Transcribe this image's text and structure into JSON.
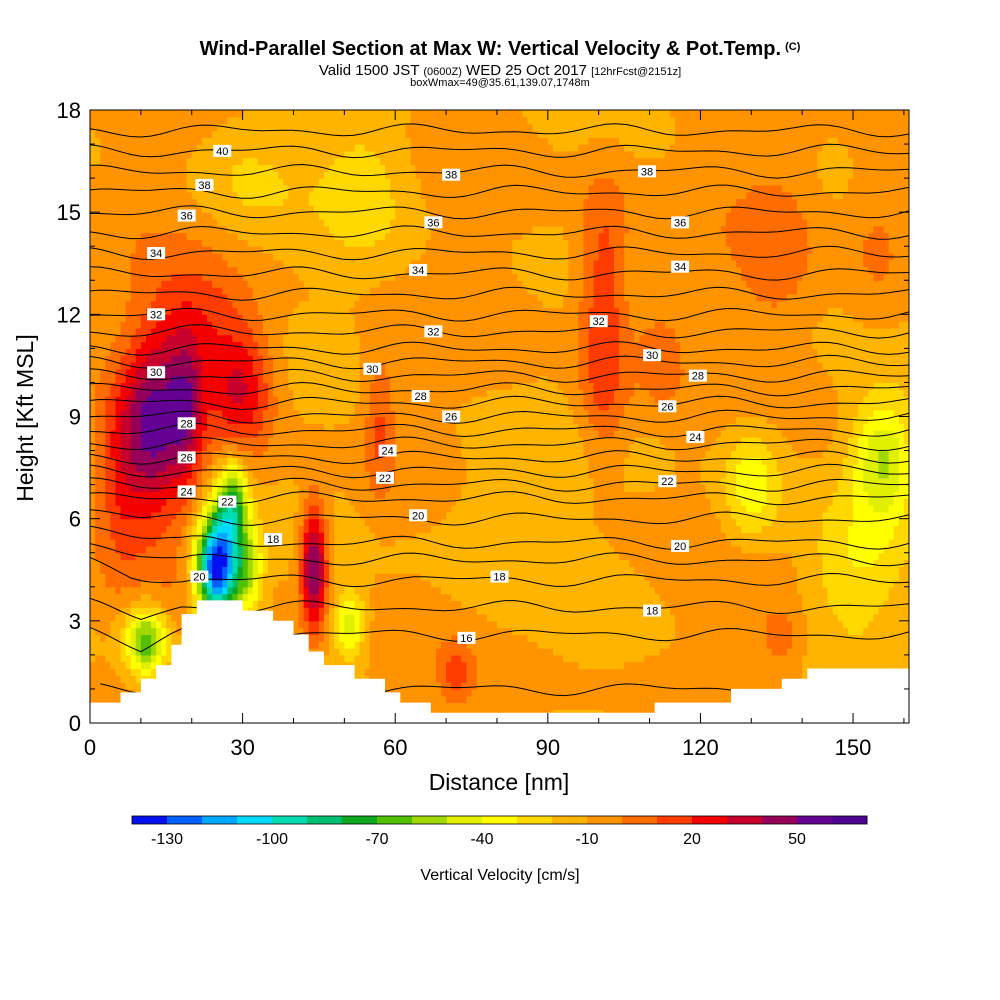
{
  "header": {
    "title": "Wind-Parallel Section at Max W: Vertical Velocity & Pot.Temp.",
    "copyright": "(C)",
    "valid_prefix": "Valid 1500 JST",
    "valid_utc": "(0600Z)",
    "valid_date": "WED 25 Oct 2017",
    "forecast": "[12hrFcst@2151z]",
    "box_info": "boxWmax=49@35.61,139.07,1748m"
  },
  "chart_data": {
    "type": "heatmap",
    "xlabel": "Distance [nm]",
    "ylabel": "Height [Kft MSL]",
    "xlim": [
      0,
      161
    ],
    "ylim": [
      0,
      18
    ],
    "xticks": [
      0,
      30,
      60,
      90,
      120,
      150
    ],
    "yticks": [
      0,
      3,
      6,
      9,
      12,
      15,
      18
    ],
    "colorbar": {
      "label": "Vertical Velocity [cm/s]",
      "tick_labels": [
        "-130",
        "-100",
        "-70",
        "-40",
        "-10",
        "20",
        "50"
      ],
      "tick_values": [
        -130,
        -100,
        -70,
        -40,
        -10,
        20,
        50
      ],
      "min": -140,
      "max": 70,
      "step": 10,
      "colors": [
        "#0010f0",
        "#0060ff",
        "#00a8ff",
        "#00dcff",
        "#00dcb0",
        "#00c070",
        "#10a820",
        "#50c000",
        "#a0d800",
        "#e0f000",
        "#ffff00",
        "#ffd800",
        "#ffb400",
        "#ff9400",
        "#ff6c00",
        "#ff3c00",
        "#f40000",
        "#c8002c",
        "#960058",
        "#640094",
        "#500090"
      ]
    },
    "terrain": [
      [
        0,
        0.6
      ],
      [
        6,
        0.6
      ],
      [
        6,
        0.9
      ],
      [
        10,
        0.9
      ],
      [
        10,
        1.3
      ],
      [
        13,
        1.3
      ],
      [
        13,
        1.7
      ],
      [
        16,
        1.7
      ],
      [
        16,
        2.3
      ],
      [
        18,
        2.3
      ],
      [
        18,
        3.2
      ],
      [
        21,
        3.2
      ],
      [
        21,
        3.6
      ],
      [
        30,
        3.6
      ],
      [
        30,
        3.3
      ],
      [
        36,
        3.3
      ],
      [
        36,
        3.0
      ],
      [
        40,
        3.0
      ],
      [
        40,
        2.6
      ],
      [
        43,
        2.6
      ],
      [
        43,
        2.1
      ],
      [
        46,
        2.1
      ],
      [
        46,
        1.7
      ],
      [
        52,
        1.7
      ],
      [
        52,
        1.3
      ],
      [
        58,
        1.3
      ],
      [
        58,
        0.9
      ],
      [
        61,
        0.9
      ],
      [
        61,
        0.6
      ],
      [
        67,
        0.6
      ],
      [
        67,
        0.3
      ],
      [
        73,
        0.3
      ],
      [
        73,
        0.3
      ],
      [
        111,
        0.3
      ],
      [
        111,
        0.6
      ],
      [
        117,
        0.6
      ],
      [
        117,
        0.6
      ],
      [
        126,
        0.6
      ],
      [
        126,
        1.0
      ],
      [
        136,
        1.0
      ],
      [
        136,
        1.3
      ],
      [
        141,
        1.3
      ],
      [
        141,
        1.6
      ],
      [
        161,
        1.6
      ]
    ],
    "w_features": [
      {
        "x": 13,
        "z": 8.6,
        "sx": 7,
        "sz": 2.6,
        "w": 55
      },
      {
        "x": 19,
        "z": 9.2,
        "sx": 3,
        "sz": 2.0,
        "w": 25
      },
      {
        "x": 30,
        "z": 9.8,
        "sx": 6,
        "sz": 1.8,
        "w": 35
      },
      {
        "x": 21,
        "z": 11.5,
        "sx": 10,
        "sz": 2.0,
        "w": 25
      },
      {
        "x": 6,
        "z": 7.0,
        "sx": 5,
        "sz": 2.5,
        "w": 20
      },
      {
        "x": 25,
        "z": 4.6,
        "sx": 4,
        "sz": 1.5,
        "w": -135
      },
      {
        "x": 28,
        "z": 6.5,
        "sx": 3,
        "sz": 1.2,
        "w": -60
      },
      {
        "x": 31,
        "z": 4.5,
        "sx": 3,
        "sz": 1.3,
        "w": -40
      },
      {
        "x": 11,
        "z": 2.4,
        "sx": 4,
        "sz": 1.0,
        "w": -60
      },
      {
        "x": 44,
        "z": 4.6,
        "sx": 2.5,
        "sz": 1.8,
        "w": 65
      },
      {
        "x": 51,
        "z": 2.9,
        "sx": 3,
        "sz": 0.9,
        "w": -40
      },
      {
        "x": 57,
        "z": 8.8,
        "sx": 3,
        "sz": 2.2,
        "w": 20
      },
      {
        "x": 72,
        "z": 1.5,
        "sx": 3,
        "sz": 0.8,
        "w": 20
      },
      {
        "x": 101,
        "z": 12.8,
        "sx": 5,
        "sz": 3.2,
        "w": 28
      },
      {
        "x": 101,
        "z": 9.5,
        "sx": 5,
        "sz": 2.0,
        "w": 15
      },
      {
        "x": 112,
        "z": 10.8,
        "sx": 4,
        "sz": 1.5,
        "w": 15
      },
      {
        "x": 135,
        "z": 14.0,
        "sx": 7,
        "sz": 2.5,
        "w": 12
      },
      {
        "x": 155,
        "z": 14.5,
        "sx": 6,
        "sz": 3.0,
        "w": 12
      },
      {
        "x": 136,
        "z": 2.6,
        "sx": 4,
        "sz": 0.8,
        "w": 15
      },
      {
        "x": 130,
        "z": 7.0,
        "sx": 6,
        "sz": 1.8,
        "w": -30
      },
      {
        "x": 156,
        "z": 7.8,
        "sx": 6,
        "sz": 1.8,
        "w": -40
      },
      {
        "x": 150,
        "z": 4.5,
        "sx": 10,
        "sz": 2.0,
        "w": -20
      },
      {
        "x": 80,
        "z": 6.0,
        "sx": 14,
        "sz": 3.0,
        "w": -12
      },
      {
        "x": 55,
        "z": 16.0,
        "sx": 10,
        "sz": 3.0,
        "w": -15
      },
      {
        "x": 30,
        "z": 16.0,
        "sx": 10,
        "sz": 2.0,
        "w": -10
      }
    ],
    "isentropes": [
      [
        [
          2,
          1.0
        ],
        [
          161,
          1.0
        ]
      ],
      [
        [
          0,
          2.8
        ],
        [
          10,
          2.2
        ],
        [
          18,
          2.6
        ],
        [
          161,
          2.6
        ]
      ],
      [
        [
          0,
          3.5
        ],
        [
          10,
          3.0
        ],
        [
          18,
          3.4
        ],
        [
          161,
          3.4
        ]
      ],
      [
        [
          0,
          4.8
        ],
        [
          8,
          4.4
        ],
        [
          18,
          4.2
        ],
        [
          161,
          4.2
        ]
      ],
      [
        [
          0,
          5.3
        ],
        [
          12,
          5.0
        ],
        [
          18,
          4.8
        ],
        [
          161,
          4.8
        ]
      ],
      [
        [
          0,
          5.8
        ],
        [
          10,
          5.5
        ],
        [
          18,
          5.3
        ],
        [
          161,
          5.3
        ]
      ],
      [
        [
          0,
          6.2
        ],
        [
          10,
          6.0
        ],
        [
          161,
          6.0
        ]
      ],
      [
        [
          0,
          6.6
        ],
        [
          161,
          6.6
        ]
      ],
      [
        [
          0,
          7.0
        ],
        [
          161,
          7.0
        ]
      ],
      [
        [
          0,
          7.4
        ],
        [
          161,
          7.4
        ]
      ],
      [
        [
          0,
          7.8
        ],
        [
          161,
          7.8
        ]
      ],
      [
        [
          0,
          8.2
        ],
        [
          161,
          8.2
        ]
      ],
      [
        [
          0,
          8.6
        ],
        [
          161,
          8.6
        ]
      ],
      [
        [
          0,
          9.0
        ],
        [
          161,
          9.0
        ]
      ],
      [
        [
          0,
          9.4
        ],
        [
          161,
          9.4
        ]
      ],
      [
        [
          0,
          9.8
        ],
        [
          161,
          9.8
        ]
      ],
      [
        [
          0,
          10.2
        ],
        [
          161,
          10.2
        ]
      ],
      [
        [
          0,
          10.6
        ],
        [
          161,
          10.6
        ]
      ],
      [
        [
          0,
          11.0
        ],
        [
          161,
          11.0
        ]
      ],
      [
        [
          0,
          11.5
        ],
        [
          161,
          11.5
        ]
      ],
      [
        [
          0,
          12.0
        ],
        [
          161,
          12.0
        ]
      ],
      [
        [
          0,
          12.6
        ],
        [
          161,
          12.6
        ]
      ],
      [
        [
          0,
          13.2
        ],
        [
          161,
          13.2
        ]
      ],
      [
        [
          0,
          13.8
        ],
        [
          161,
          13.8
        ]
      ],
      [
        [
          0,
          14.4
        ],
        [
          161,
          14.4
        ]
      ],
      [
        [
          0,
          15.0
        ],
        [
          161,
          15.0
        ]
      ],
      [
        [
          0,
          15.6
        ],
        [
          161,
          15.6
        ]
      ],
      [
        [
          0,
          16.2
        ],
        [
          161,
          16.2
        ]
      ],
      [
        [
          0,
          16.8
        ],
        [
          161,
          16.8
        ]
      ],
      [
        [
          0,
          17.4
        ],
        [
          161,
          17.4
        ]
      ]
    ],
    "contour_labels": [
      {
        "text": "40",
        "x": 26,
        "y": 16.8
      },
      {
        "text": "38",
        "x": 22.5,
        "y": 15.8
      },
      {
        "text": "36",
        "x": 19,
        "y": 14.9
      },
      {
        "text": "34",
        "x": 13,
        "y": 13.8
      },
      {
        "text": "32",
        "x": 13,
        "y": 12.0
      },
      {
        "text": "30",
        "x": 13,
        "y": 10.3
      },
      {
        "text": "28",
        "x": 19,
        "y": 8.8
      },
      {
        "text": "26",
        "x": 19,
        "y": 7.8
      },
      {
        "text": "24",
        "x": 19,
        "y": 6.8
      },
      {
        "text": "22",
        "x": 27,
        "y": 6.5
      },
      {
        "text": "20",
        "x": 21.5,
        "y": 4.3
      },
      {
        "text": "18",
        "x": 36,
        "y": 5.4
      },
      {
        "text": "16",
        "x": 74,
        "y": 2.5
      },
      {
        "text": "18",
        "x": 80.5,
        "y": 4.3
      },
      {
        "text": "18",
        "x": 110.5,
        "y": 3.3
      },
      {
        "text": "20",
        "x": 64.5,
        "y": 6.1
      },
      {
        "text": "20",
        "x": 116,
        "y": 5.2
      },
      {
        "text": "22",
        "x": 58,
        "y": 7.2
      },
      {
        "text": "22",
        "x": 113.5,
        "y": 7.1
      },
      {
        "text": "24",
        "x": 58.5,
        "y": 8.0
      },
      {
        "text": "24",
        "x": 119,
        "y": 8.4
      },
      {
        "text": "26",
        "x": 71,
        "y": 9.0
      },
      {
        "text": "26",
        "x": 113.5,
        "y": 9.3
      },
      {
        "text": "28",
        "x": 65,
        "y": 9.6
      },
      {
        "text": "28",
        "x": 119.5,
        "y": 10.2
      },
      {
        "text": "30",
        "x": 55.5,
        "y": 10.4
      },
      {
        "text": "30",
        "x": 110.5,
        "y": 10.8
      },
      {
        "text": "32",
        "x": 67.5,
        "y": 11.5
      },
      {
        "text": "32",
        "x": 100,
        "y": 11.8
      },
      {
        "text": "34",
        "x": 64.5,
        "y": 13.3
      },
      {
        "text": "34",
        "x": 116,
        "y": 13.4
      },
      {
        "text": "36",
        "x": 67.5,
        "y": 14.7
      },
      {
        "text": "36",
        "x": 116,
        "y": 14.7
      },
      {
        "text": "38",
        "x": 71,
        "y": 16.1
      },
      {
        "text": "38",
        "x": 109.5,
        "y": 16.2
      }
    ]
  }
}
